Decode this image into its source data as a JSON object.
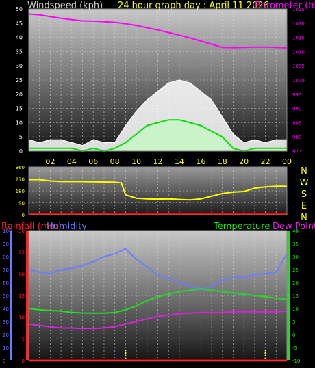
{
  "header": {
    "ylabel_left": "Windspeed (kph)",
    "title": "24 hour graph day : April 11 2026",
    "ylabel_right": "Barometer (hPa)"
  },
  "compass": [
    "N",
    "W",
    "S",
    "E",
    "N"
  ],
  "bottom_titles": {
    "rainfall": "Rainfall (mm)",
    "humidity": "Humidity",
    "temperature": "Temperature",
    "dew_point": "Dew Point"
  },
  "colors": {
    "windspeed": "#ffffff",
    "gust": "#ffffff",
    "avg_wind": "#00e000",
    "barometer": "#ff00ff",
    "direction": "#ffff00",
    "humidity": "#6a7dff",
    "temperature": "#22dd22",
    "dew_point": "#dd22dd",
    "rainfall": "#ff0000",
    "rain_axis": "#ff2020",
    "hum_axis": "#6a7dff",
    "temp_axis": "#22dd22"
  },
  "chart_data": [
    {
      "type": "line",
      "name": "wind_and_pressure",
      "x_ticks": [
        "02",
        "04",
        "06",
        "08",
        "10",
        "12",
        "14",
        "16",
        "18",
        "20",
        "22",
        "00"
      ],
      "y_left_ticks": [
        "0",
        "5",
        "10",
        "15",
        "20",
        "25",
        "30",
        "35",
        "40",
        "45",
        "50"
      ],
      "y_left_range": [
        0,
        50
      ],
      "y_right_ticks": [
        "975",
        "980",
        "985",
        "990",
        "995",
        "1000",
        "1005",
        "1010",
        "1015",
        "1020",
        "1025"
      ],
      "y_right_range": [
        975,
        1025
      ],
      "hours": [
        0,
        1,
        2,
        3,
        4,
        5,
        6,
        7,
        8,
        9,
        10,
        11,
        12,
        13,
        14,
        15,
        16,
        17,
        18,
        19,
        20,
        21,
        22,
        23,
        24
      ],
      "gust_kph": [
        4,
        3,
        4,
        4,
        3,
        2,
        4,
        3,
        3,
        9,
        14,
        18,
        21,
        24,
        25,
        24,
        21,
        18,
        12,
        6,
        3,
        4,
        3,
        4,
        4
      ],
      "avg_wind_kph": [
        1,
        1,
        1,
        1,
        1,
        0,
        1,
        0,
        1,
        3,
        6,
        9,
        10,
        11,
        11,
        10,
        9,
        7,
        5,
        1,
        0,
        1,
        1,
        1,
        1
      ],
      "barometer_hpa": [
        1023.2,
        1022.9,
        1022.3,
        1021.7,
        1021.2,
        1020.8,
        1020.7,
        1020.5,
        1020.3,
        1019.8,
        1019.2,
        1018.4,
        1017.6,
        1016.7,
        1015.8,
        1014.8,
        1013.7,
        1012.6,
        1011.5,
        1011.4,
        1011.5,
        1011.6,
        1011.6,
        1011.5,
        1011.3
      ]
    },
    {
      "type": "line",
      "name": "wind_direction",
      "y_ticks": [
        "0",
        "90",
        "180",
        "270",
        "360"
      ],
      "y_range": [
        0,
        360
      ],
      "hours": [
        0,
        1,
        2,
        3,
        4,
        5,
        6,
        7,
        8,
        8.6,
        9,
        10,
        11,
        12,
        13,
        14,
        15,
        16,
        17,
        18,
        19,
        20,
        21,
        22,
        23,
        24
      ],
      "direction_deg": [
        265,
        265,
        255,
        250,
        250,
        250,
        248,
        247,
        245,
        240,
        150,
        125,
        120,
        118,
        120,
        115,
        112,
        120,
        140,
        160,
        170,
        175,
        200,
        210,
        215,
        215
      ]
    },
    {
      "type": "line",
      "name": "rain_humidity_temperature",
      "y_left_rain_ticks": [
        "0",
        "5",
        "10",
        "15",
        "20",
        "25",
        "30"
      ],
      "rain_range_mm": [
        0,
        30
      ],
      "y_left_humidity_ticks": [
        "0",
        "10",
        "20",
        "30",
        "40",
        "50",
        "60",
        "70",
        "80",
        "90",
        "100"
      ],
      "humidity_range_pct": [
        0,
        100
      ],
      "y_right_temp_ticks": [
        "-10",
        "-5",
        "0",
        "5",
        "10",
        "15",
        "20",
        "25",
        "30",
        "35",
        "40"
      ],
      "temp_range_c": [
        -10,
        40
      ],
      "hours": [
        0,
        1,
        2,
        3,
        4,
        5,
        6,
        7,
        8,
        9,
        10,
        11,
        12,
        13,
        14,
        15,
        16,
        17,
        18,
        19,
        20,
        21,
        22,
        23,
        24
      ],
      "humidity_pct": [
        70,
        68,
        67,
        70,
        71,
        73,
        76,
        80,
        82,
        86,
        78,
        72,
        66,
        63,
        60,
        57,
        55,
        57,
        62,
        64,
        64,
        66,
        67,
        68,
        82
      ],
      "temperature_c": [
        10,
        9.5,
        9.2,
        9,
        8.5,
        8.3,
        8.2,
        8.2,
        8.5,
        9.5,
        11,
        13,
        14.5,
        15.5,
        16.5,
        17,
        17.5,
        17,
        16.5,
        16,
        15.5,
        15,
        14.5,
        14,
        13.5
      ],
      "dew_point_c": [
        4,
        3.5,
        3,
        2.5,
        2.5,
        2.3,
        2.3,
        2.5,
        3,
        4,
        5,
        6,
        7,
        7.5,
        8,
        8.2,
        8.5,
        8.5,
        8.5,
        8.7,
        8.8,
        8.8,
        8.7,
        8.7,
        9
      ],
      "rainfall_mm": [
        0,
        0,
        0,
        0,
        0,
        0,
        0,
        0,
        0,
        0,
        0,
        0,
        0,
        0,
        0,
        0,
        0,
        0,
        0,
        0,
        0,
        0,
        0,
        0,
        0
      ],
      "rain_marker_hours": [
        9,
        22
      ]
    }
  ]
}
